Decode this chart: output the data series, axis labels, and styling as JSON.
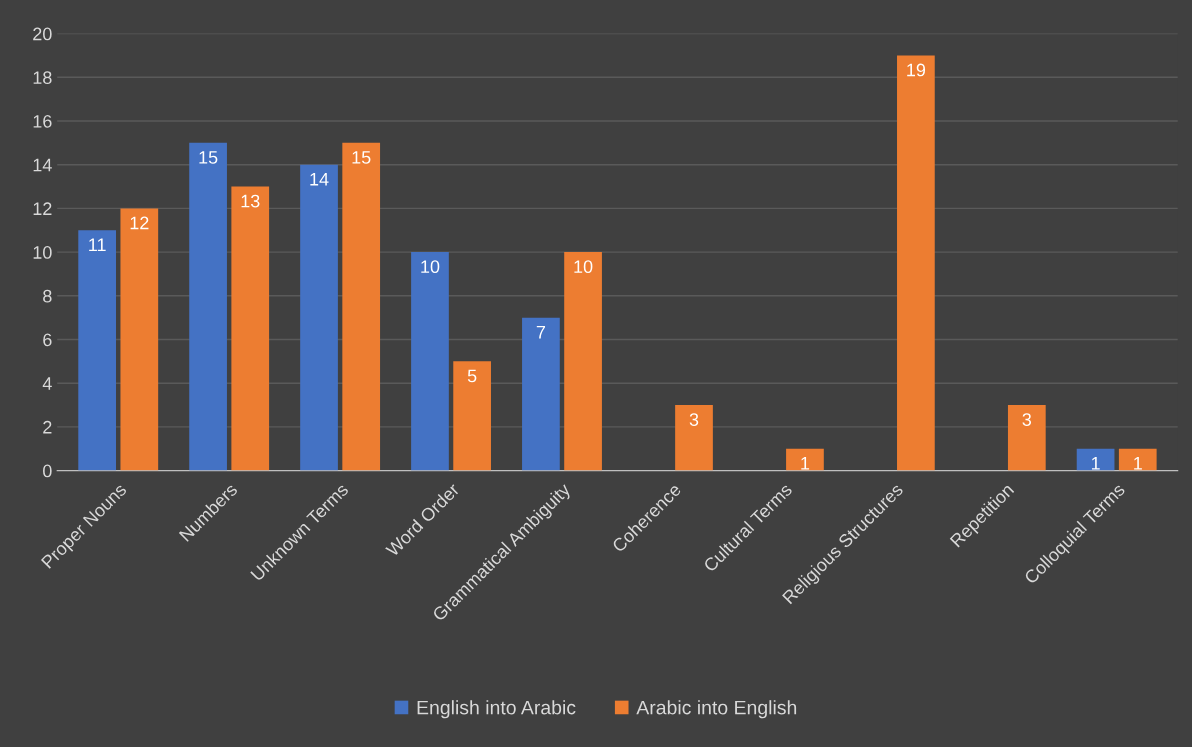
{
  "chart_data": {
    "type": "bar",
    "categories": [
      "Proper Nouns",
      "Numbers",
      "Unknown Terms",
      "Word Order",
      "Grammatical Ambiguity",
      "Coherence",
      "Cultural Terms",
      "Religious Structures",
      "Repetition",
      "Colloquial Terms"
    ],
    "series": [
      {
        "name": "English into Arabic",
        "color": "#4472c4",
        "values": [
          11,
          15,
          14,
          10,
          7,
          null,
          null,
          null,
          null,
          1
        ]
      },
      {
        "name": "Arabic into English",
        "color": "#ed7d31",
        "values": [
          12,
          13,
          15,
          5,
          10,
          3,
          1,
          19,
          3,
          1
        ]
      }
    ],
    "ylim": [
      0,
      20
    ],
    "yticks": [
      0,
      2,
      4,
      6,
      8,
      10,
      12,
      14,
      16,
      18,
      20
    ],
    "grid": "y",
    "legend": "bottom",
    "data_labels": true
  }
}
